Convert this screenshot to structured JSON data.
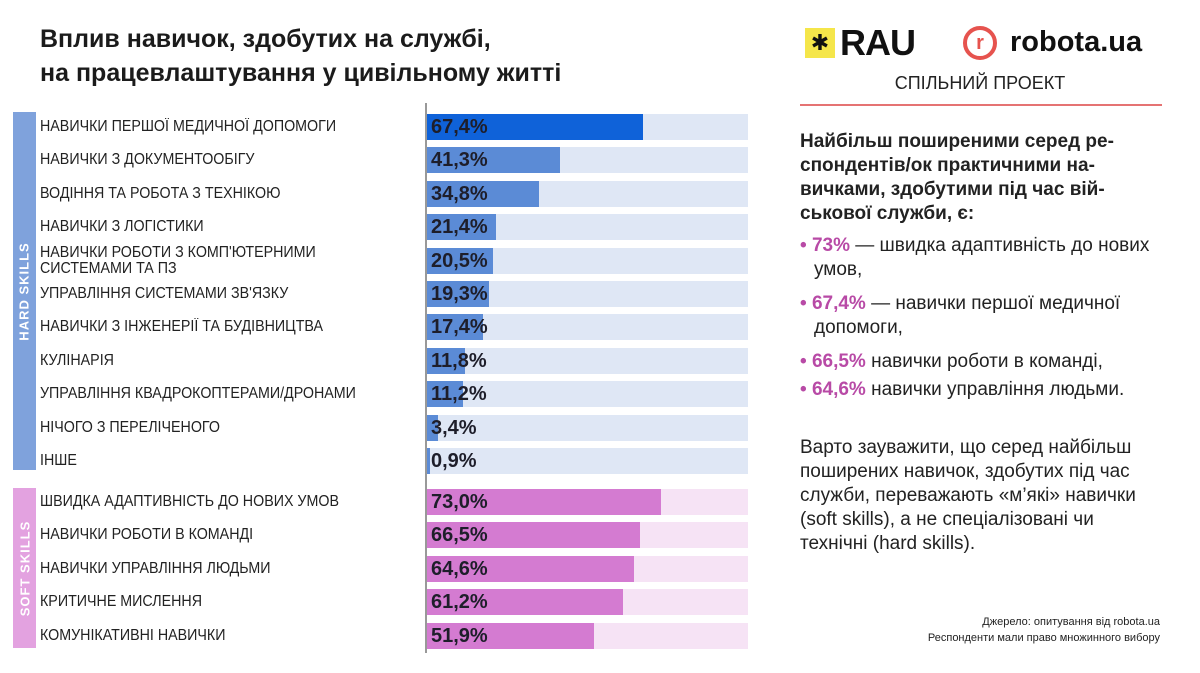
{
  "title_line1": "Вплив навичок, здобутих на службі,",
  "title_line2": "на працевлаштування у цивільному житті",
  "logos": {
    "rau": "RAU",
    "robota": "robota.ua",
    "joint": "СПІЛЬНИЙ ПРОЕКТ"
  },
  "chart_data": {
    "type": "bar",
    "orientation": "horizontal",
    "title": "Вплив навичок, здобутих на службі, на працевлаштування у цивільному житті",
    "xlim": [
      0,
      100
    ],
    "groups": [
      {
        "name": "HARD SKILLS",
        "color": "#5b8bd6",
        "track": "#dfe7f5",
        "highlight": "#0f62d9",
        "categories": [
          "НАВИЧКИ ПЕРШОЇ МЕДИЧНОЇ ДОПОМОГИ",
          "НАВИЧКИ З ДОКУМЕНТООБІГУ",
          "ВОДІННЯ ТА РОБОТА З ТЕХНІКОЮ",
          "НАВИЧКИ З ЛОГІСТИКИ",
          "НАВИЧКИ РОБОТИ З КОМП'ЮТЕРНИМИ СИСТЕМАМИ ТА ПЗ",
          "УПРАВЛІННЯ СИСТЕМАМИ ЗВ'ЯЗКУ",
          "НАВИЧКИ З ІНЖЕНЕРІЇ ТА БУДІВНИЦТВА",
          "КУЛІНАРІЯ",
          "УПРАВЛІННЯ КВАДРОКОПТЕРАМИ/ДРОНАМИ",
          "НІЧОГО З ПЕРЕЛІЧЕНОГО",
          "ІНШЕ"
        ],
        "values": [
          67.4,
          41.3,
          34.8,
          21.4,
          20.5,
          19.3,
          17.4,
          11.8,
          11.2,
          3.4,
          0.9
        ],
        "labels": [
          "67,4%",
          "41,3%",
          "34,8%",
          "21,4%",
          "20,5%",
          "19,3%",
          "17,4%",
          "11,8%",
          "11,2%",
          "3,4%",
          "0,9%"
        ]
      },
      {
        "name": "SOFT SKILLS",
        "color": "#d47bd1",
        "track": "#f6e3f5",
        "highlight": "#d47bd1",
        "categories": [
          "ШВИДКА АДАПТИВНІСТЬ ДО НОВИХ УМОВ",
          "НАВИЧКИ РОБОТИ В КОМАНДІ",
          "НАВИЧКИ УПРАВЛІННЯ ЛЮДЬМИ",
          "КРИТИЧНЕ МИСЛЕННЯ",
          "КОМУНІКАТИВНІ НАВИЧКИ"
        ],
        "values": [
          73.0,
          66.5,
          64.6,
          61.2,
          51.9
        ],
        "labels": [
          "73,0%",
          "66,5%",
          "64,6%",
          "61,2%",
          "51,9%"
        ]
      }
    ]
  },
  "panel": {
    "lead": "Найбільш поширеними серед ре­спондентів/ок практичними на­вичками, здобутими під час вій­ськової служби, є:",
    "bullets": [
      {
        "pct": "73%",
        "text": " — швидка адаптивність до нових умов,"
      },
      {
        "pct": "67,4%",
        "text": " — навички першої медичної допомоги,"
      },
      {
        "pct": "66,5%",
        "text": " навички роботи в команді,"
      },
      {
        "pct": "64,6%",
        "text": " навички управління людьми."
      }
    ],
    "note": "Варто зауважити, що серед най­більш поширених навичок, здобу­тих під час служби, переважають «м’які» навички (soft skills), а не спеціалізовані чи технічні (hard skills).",
    "source1": "Джерело: опитування від robota.ua",
    "source2": "Респонденти мали право множинного вибору"
  }
}
